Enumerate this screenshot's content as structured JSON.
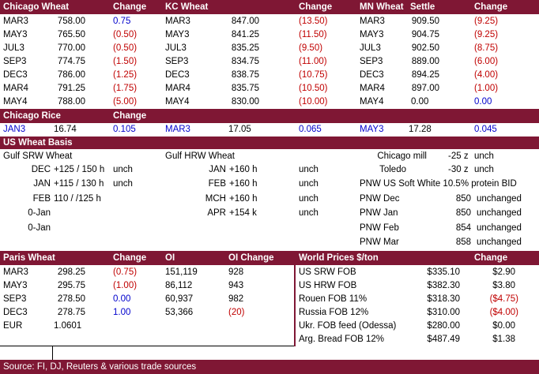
{
  "futures": {
    "chicago": {
      "title": "Chicago Wheat",
      "change_label": "Change",
      "rows": [
        {
          "month": "MAR3",
          "price": "758.00",
          "change": "0.75",
          "dir": "pos"
        },
        {
          "month": "MAY3",
          "price": "765.50",
          "change": "(0.50)",
          "dir": "neg"
        },
        {
          "month": "JUL3",
          "price": "770.00",
          "change": "(0.50)",
          "dir": "neg"
        },
        {
          "month": "SEP3",
          "price": "774.75",
          "change": "(1.50)",
          "dir": "neg"
        },
        {
          "month": "DEC3",
          "price": "786.00",
          "change": "(1.25)",
          "dir": "neg"
        },
        {
          "month": "MAR4",
          "price": "791.25",
          "change": "(1.75)",
          "dir": "neg"
        },
        {
          "month": "MAY4",
          "price": "788.00",
          "change": "(5.00)",
          "dir": "neg"
        }
      ]
    },
    "kc": {
      "title": "KC Wheat",
      "change_label": "Change",
      "rows": [
        {
          "month": "MAR3",
          "price": "847.00",
          "change": "(13.50)",
          "dir": "neg"
        },
        {
          "month": "MAY3",
          "price": "841.25",
          "change": "(11.50)",
          "dir": "neg"
        },
        {
          "month": "JUL3",
          "price": "835.25",
          "change": "(9.50)",
          "dir": "neg"
        },
        {
          "month": "SEP3",
          "price": "834.75",
          "change": "(11.00)",
          "dir": "neg"
        },
        {
          "month": "DEC3",
          "price": "838.75",
          "change": "(10.75)",
          "dir": "neg"
        },
        {
          "month": "MAR4",
          "price": "835.75",
          "change": "(10.50)",
          "dir": "neg"
        },
        {
          "month": "MAY4",
          "price": "830.00",
          "change": "(10.00)",
          "dir": "neg"
        }
      ]
    },
    "mn": {
      "title": "MN Wheat",
      "settle_label": "Settle",
      "change_label": "Change",
      "rows": [
        {
          "month": "MAR3",
          "price": "909.50",
          "change": "(9.25)",
          "dir": "neg"
        },
        {
          "month": "MAY3",
          "price": "904.75",
          "change": "(9.25)",
          "dir": "neg"
        },
        {
          "month": "JUL3",
          "price": "902.50",
          "change": "(8.75)",
          "dir": "neg"
        },
        {
          "month": "SEP3",
          "price": "889.00",
          "change": "(6.00)",
          "dir": "neg"
        },
        {
          "month": "DEC3",
          "price": "894.25",
          "change": "(4.00)",
          "dir": "neg"
        },
        {
          "month": "MAR4",
          "price": "897.00",
          "change": "(1.00)",
          "dir": "neg"
        },
        {
          "month": "MAY4",
          "price": "0.00",
          "change": "0.00",
          "dir": "pos"
        }
      ]
    }
  },
  "rice": {
    "title": "Chicago Rice",
    "change_label": "Change",
    "items": [
      {
        "month": "JAN3",
        "price": "16.74",
        "change": "0.105"
      },
      {
        "month": "MAR3",
        "price": "17.05",
        "change": "0.065"
      },
      {
        "month": "MAY3",
        "price": "17.28",
        "change": "0.045"
      }
    ]
  },
  "basis": {
    "title": "US Wheat Basis",
    "srw_title": "Gulf SRW Wheat",
    "srw_rows": [
      {
        "month": "DEC",
        "basis": "+125 / 150 h",
        "chg": "unch"
      },
      {
        "month": "JAN",
        "basis": "+115 / 130 h",
        "chg": "unch"
      },
      {
        "month": "FEB",
        "basis": "110 / /125 h",
        "chg": ""
      },
      {
        "month": "0-Jan",
        "basis": "",
        "chg": ""
      },
      {
        "month": "0-Jan",
        "basis": "",
        "chg": ""
      }
    ],
    "hrw_title": "Gulf HRW Wheat",
    "hrw_rows": [
      {
        "month": "JAN",
        "basis": "+160 h",
        "chg": "unch"
      },
      {
        "month": "FEB",
        "basis": "+160 h",
        "chg": "unch"
      },
      {
        "month": "MCH",
        "basis": "+160 h",
        "chg": "unch"
      },
      {
        "month": "APR",
        "basis": "+154 k",
        "chg": "unch"
      }
    ],
    "mill_rows": [
      {
        "label": "Chicago mill",
        "value": "-25 z",
        "chg": "unch"
      },
      {
        "label": "Toledo",
        "value": "-30 z",
        "chg": "unch"
      }
    ],
    "pnw_title": "PNW US Soft White 10.5% protein BID",
    "pnw_rows": [
      {
        "label": "PNW Dec",
        "value": "850",
        "chg": "unchanged"
      },
      {
        "label": "PNW Jan",
        "value": "850",
        "chg": "unchanged"
      },
      {
        "label": "PNW Feb",
        "value": "854",
        "chg": "unchanged"
      },
      {
        "label": "PNW Mar",
        "value": "858",
        "chg": "unchanged"
      }
    ]
  },
  "paris": {
    "title": "Paris Wheat",
    "change_label": "Change",
    "oi_label": "OI",
    "oi_change_label": "OI Change",
    "rows": [
      {
        "month": "MAR3",
        "price": "298.25",
        "change": "(0.75)",
        "dir": "neg",
        "oi": "151,119",
        "oi_chg": "928",
        "oi_dir": ""
      },
      {
        "month": "MAY3",
        "price": "295.75",
        "change": "(1.00)",
        "dir": "neg",
        "oi": "86,112",
        "oi_chg": "943",
        "oi_dir": ""
      },
      {
        "month": "SEP3",
        "price": "278.50",
        "change": "0.00",
        "dir": "pos",
        "oi": "60,937",
        "oi_chg": "982",
        "oi_dir": ""
      },
      {
        "month": "DEC3",
        "price": "278.75",
        "change": "1.00",
        "dir": "pos",
        "oi": "53,366",
        "oi_chg": "(20)",
        "oi_dir": "neg"
      }
    ],
    "eur_label": "EUR",
    "eur_value": "1.0601"
  },
  "world": {
    "title": "World Prices $/ton",
    "change_label": "Change",
    "rows": [
      {
        "label": "US SRW FOB",
        "price": "$335.10",
        "change": "$2.90",
        "dir": ""
      },
      {
        "label": "US HRW FOB",
        "price": "$382.30",
        "change": "$3.80",
        "dir": ""
      },
      {
        "label": "Rouen FOB 11%",
        "price": "$318.30",
        "change": "($4.75)",
        "dir": "neg"
      },
      {
        "label": "Russia FOB 12%",
        "price": "$310.00",
        "change": "($4.00)",
        "dir": "neg"
      },
      {
        "label": "Ukr. FOB feed (Odessa)",
        "price": "$280.00",
        "change": "$0.00",
        "dir": ""
      },
      {
        "label": "Arg. Bread FOB 12%",
        "price": "$487.49",
        "change": "$1.38",
        "dir": ""
      }
    ]
  },
  "footer": {
    "source": "Source: FI, DJ, Reuters & various trade sources"
  },
  "colors": {
    "header_bg": "#7f1734",
    "negative": "#c00000",
    "positive": "#0000cc"
  }
}
